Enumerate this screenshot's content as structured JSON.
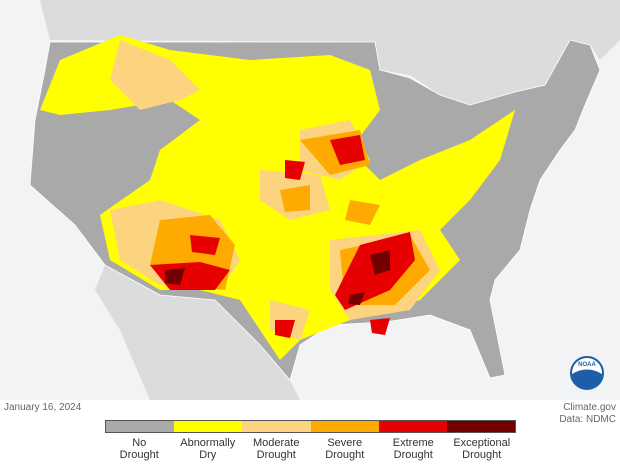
{
  "map": {
    "date": "January 16, 2024",
    "source": "Climate.gov",
    "data_credit": "Data: NDMC",
    "logo_text": "NOAA",
    "legend": [
      {
        "label": "No Drought",
        "color": "#a9a9a9"
      },
      {
        "label": "Abnormally Dry",
        "color": "#ffff00"
      },
      {
        "label": "Moderate Drought",
        "color": "#fcd37f"
      },
      {
        "label": "Severe Drought",
        "color": "#ffaa00"
      },
      {
        "label": "Extreme Drought",
        "color": "#e60000"
      },
      {
        "label": "Exceptional Drought",
        "color": "#730000"
      }
    ]
  }
}
